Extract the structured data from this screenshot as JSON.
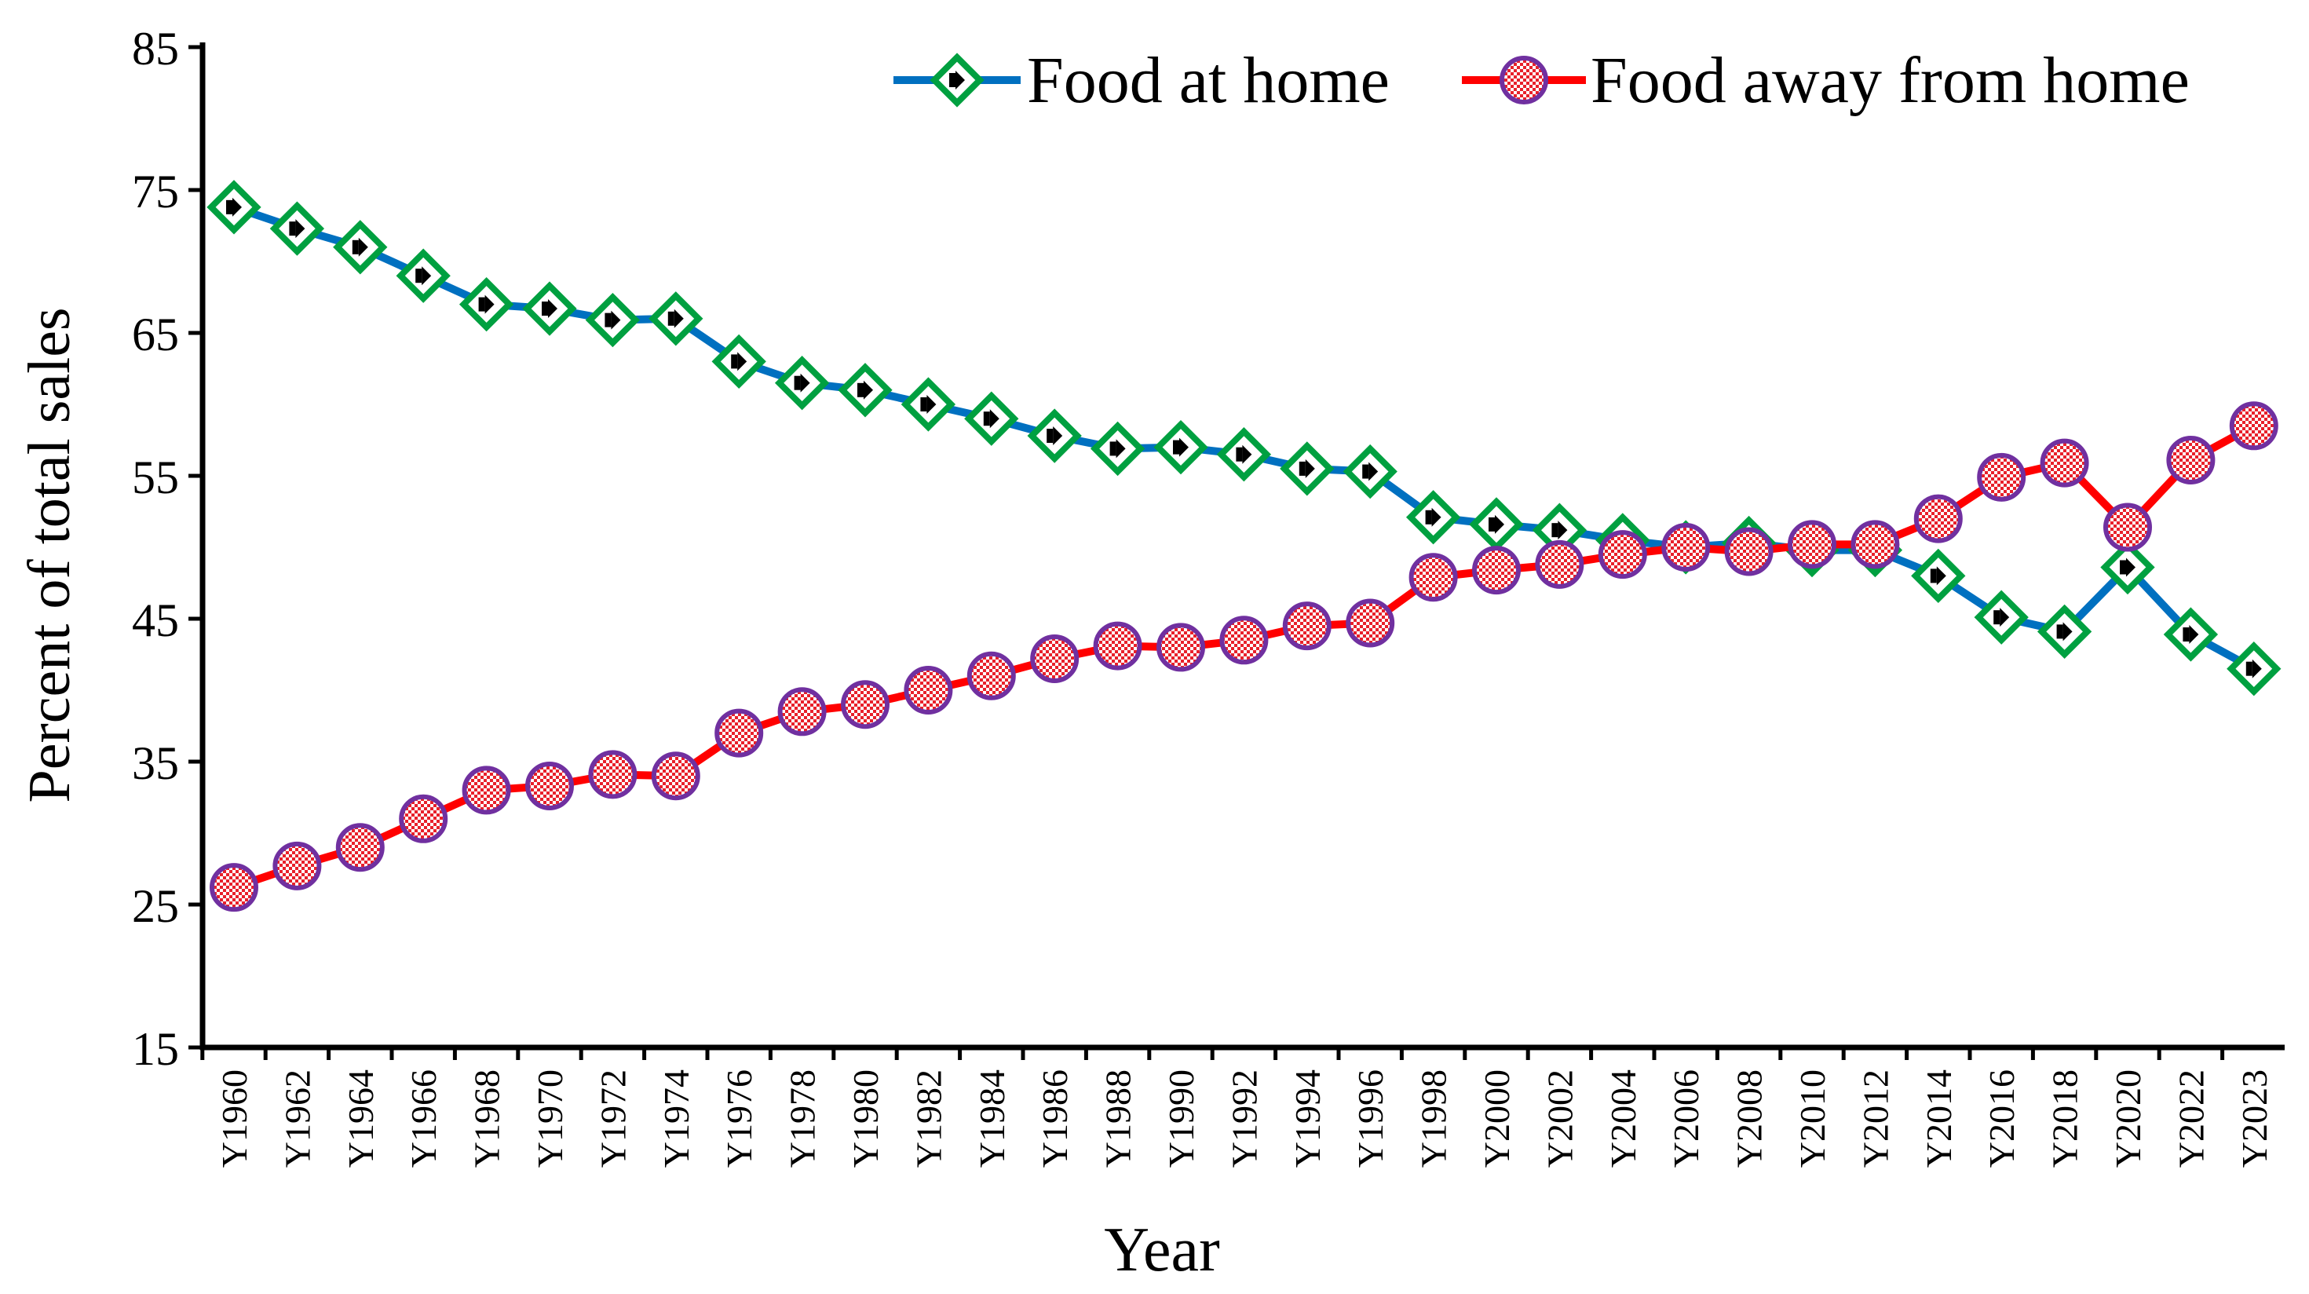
{
  "chart_data": {
    "type": "line",
    "title": "",
    "xlabel": "Year",
    "ylabel": "Percent of total sales",
    "ylim": [
      15,
      85
    ],
    "yticks": [
      15,
      25,
      35,
      45,
      55,
      65,
      75,
      85
    ],
    "grid": false,
    "legend_position": "top-right",
    "categories": [
      "Y1960",
      "Y1962",
      "Y1964",
      "Y1966",
      "Y1968",
      "Y1970",
      "Y1972",
      "Y1974",
      "Y1976",
      "Y1978",
      "Y1980",
      "Y1982",
      "Y1984",
      "Y1986",
      "Y1988",
      "Y1990",
      "Y1992",
      "Y1994",
      "Y1996",
      "Y1998",
      "Y2000",
      "Y2002",
      "Y2004",
      "Y2006",
      "Y2008",
      "Y2010",
      "Y2012",
      "Y2014",
      "Y2016",
      "Y2018",
      "Y2020",
      "Y2022",
      "Y2023"
    ],
    "series": [
      {
        "name": "Food at home",
        "line_color": "#0070C0",
        "marker": "diamond",
        "marker_edge": "#00A040",
        "values": [
          73.8,
          72.3,
          71.0,
          69.0,
          67.0,
          66.7,
          65.9,
          66.0,
          63.0,
          61.5,
          61.0,
          60.0,
          59.0,
          57.8,
          56.9,
          57.0,
          56.5,
          55.5,
          55.3,
          52.1,
          51.6,
          51.2,
          50.5,
          50.0,
          50.3,
          49.8,
          49.8,
          48.0,
          45.1,
          44.1,
          48.6,
          43.9,
          41.5
        ]
      },
      {
        "name": "Food away from home",
        "line_color": "#FF0000",
        "marker": "circle",
        "marker_edge": "#7030A0",
        "values": [
          26.2,
          27.7,
          29.0,
          31.0,
          33.0,
          33.3,
          34.1,
          34.0,
          37.0,
          38.5,
          39.0,
          40.0,
          41.0,
          42.2,
          43.1,
          43.0,
          43.5,
          44.5,
          44.7,
          47.9,
          48.4,
          48.8,
          49.5,
          50.0,
          49.7,
          50.2,
          50.2,
          52.0,
          54.9,
          55.9,
          51.4,
          56.1,
          58.5
        ]
      }
    ]
  }
}
